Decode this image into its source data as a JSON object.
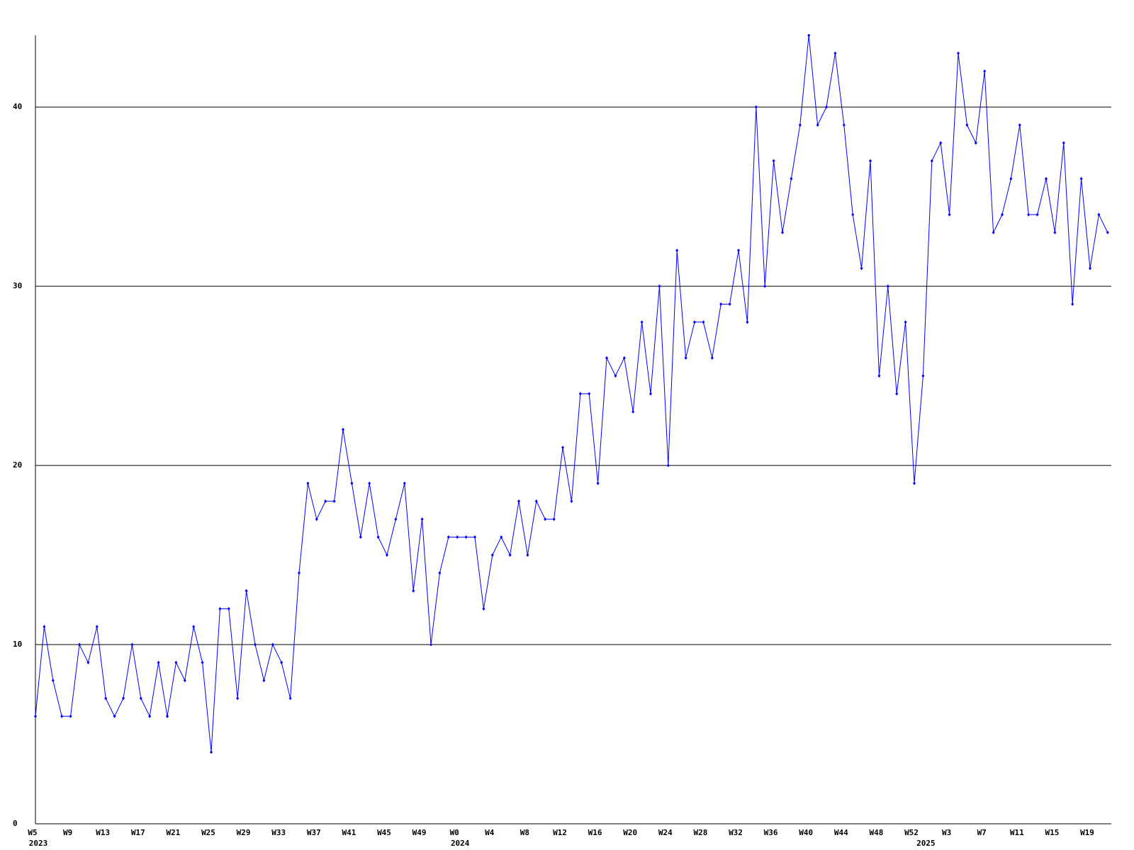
{
  "chart_data": {
    "type": "line",
    "categories": [
      "W5",
      null,
      null,
      null,
      "W9",
      null,
      null,
      null,
      "W13",
      null,
      null,
      null,
      "W17",
      null,
      null,
      null,
      "W21",
      null,
      null,
      null,
      "W25",
      null,
      null,
      null,
      "W29",
      null,
      null,
      null,
      "W33",
      null,
      null,
      null,
      "W37",
      null,
      null,
      null,
      "W41",
      null,
      null,
      null,
      "W45",
      null,
      null,
      null,
      "W49",
      null,
      null,
      null,
      "W0",
      null,
      null,
      null,
      "W4",
      null,
      null,
      null,
      "W8",
      null,
      null,
      null,
      "W12",
      null,
      null,
      null,
      "W16",
      null,
      null,
      null,
      "W20",
      null,
      null,
      null,
      "W24",
      null,
      null,
      null,
      "W28",
      null,
      null,
      null,
      "W32",
      null,
      null,
      null,
      "W36",
      null,
      null,
      null,
      "W40",
      null,
      null,
      null,
      "W44",
      null,
      null,
      null,
      "W48",
      null,
      null,
      null,
      "W52",
      null,
      null,
      null,
      "W3",
      null,
      null,
      null,
      "W7",
      null,
      null,
      null,
      "W11",
      null,
      null,
      null,
      "W15",
      null,
      null,
      null,
      "W19",
      null,
      null
    ],
    "years": [
      "2023",
      null,
      null,
      null,
      null,
      null,
      null,
      null,
      null,
      null,
      null,
      null,
      null,
      null,
      null,
      null,
      null,
      null,
      null,
      null,
      null,
      null,
      null,
      null,
      null,
      null,
      null,
      null,
      null,
      null,
      null,
      null,
      null,
      null,
      null,
      null,
      null,
      null,
      null,
      null,
      null,
      null,
      null,
      null,
      null,
      null,
      null,
      null,
      "2024",
      null,
      null,
      null,
      null,
      null,
      null,
      null,
      null,
      null,
      null,
      null,
      null,
      null,
      null,
      null,
      null,
      null,
      null,
      null,
      null,
      null,
      null,
      null,
      null,
      null,
      null,
      null,
      null,
      null,
      null,
      null,
      null,
      null,
      null,
      null,
      null,
      null,
      null,
      null,
      null,
      null,
      null,
      null,
      null,
      null,
      null,
      null,
      null,
      null,
      null,
      null,
      null,
      "2025",
      null,
      null,
      null,
      null,
      null,
      null,
      null,
      null,
      null,
      null,
      null,
      null,
      null,
      null,
      null,
      null,
      null,
      null,
      null,
      null,
      null
    ],
    "series": [
      {
        "color": "#0000ff",
        "values": [
          6,
          11,
          8,
          6,
          6,
          10,
          9,
          11,
          7,
          6,
          7,
          10,
          7,
          6,
          9,
          6,
          9,
          8,
          11,
          9,
          4,
          12,
          12,
          7,
          13,
          10,
          8,
          10,
          9,
          7,
          14,
          19,
          17,
          18,
          18,
          22,
          19,
          16,
          19,
          16,
          15,
          17,
          19,
          13,
          17,
          10,
          14,
          16,
          16,
          16,
          16,
          12,
          15,
          16,
          15,
          18,
          15,
          18,
          17,
          17,
          21,
          18,
          24,
          24,
          19,
          26,
          25,
          26,
          23,
          28,
          24,
          30,
          20,
          32,
          26,
          28,
          28,
          26,
          29,
          29,
          32,
          28,
          40,
          30,
          37,
          33,
          36,
          39,
          44,
          39,
          40,
          43,
          39,
          34,
          31,
          37,
          25,
          30,
          24,
          28,
          19,
          25,
          37,
          38,
          34,
          43,
          39,
          38,
          42,
          33,
          34,
          36,
          39,
          34,
          34,
          36,
          33,
          38,
          29,
          36,
          31,
          34,
          33
        ]
      }
    ],
    "ylim": [
      0,
      44
    ],
    "yticks": [
      0,
      10,
      20,
      30,
      40
    ],
    "grid": true
  }
}
